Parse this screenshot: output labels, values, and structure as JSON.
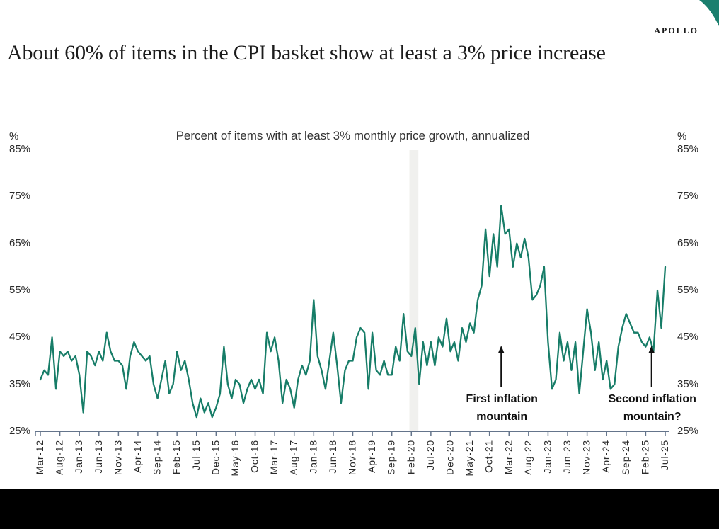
{
  "page": {
    "title": "About 60% of items in the CPI basket show at least a 3% price increase"
  },
  "branding": {
    "logo_text": "APOLLO",
    "accent_color": "#1b7f6e"
  },
  "chart_data": {
    "type": "line",
    "title": "Percent of items with at least 3% monthly price growth, annualized",
    "unit_label": "%",
    "ylim": [
      25,
      85
    ],
    "y_tick_values": [
      85,
      75,
      65,
      55,
      45,
      35,
      25
    ],
    "y_tick_labels": [
      "85%",
      "75%",
      "65%",
      "55%",
      "45%",
      "35%",
      "25%"
    ],
    "grid": "off",
    "x_start_label": "Mar-12",
    "x_end_label": "Jul-25",
    "x_tick_step_months": 5,
    "x_tick_labels": [
      "Mar-12",
      "Aug-12",
      "Jan-13",
      "Jun-13",
      "Nov-13",
      "Apr-14",
      "Sep-14",
      "Feb-15",
      "Jul-15",
      "Dec-15",
      "May-16",
      "Oct-16",
      "Mar-17",
      "Aug-17",
      "Jan-18",
      "Jun-18",
      "Nov-18",
      "Apr-19",
      "Sep-19",
      "Feb-20",
      "Jul-20",
      "Dec-20",
      "May-21",
      "Oct-21",
      "Mar-22",
      "Aug-22",
      "Jan-23",
      "Jun-23",
      "Nov-23",
      "Apr-24",
      "Sep-24",
      "Feb-25",
      "Jul-25"
    ],
    "series": [
      {
        "name": "Percent of items with at least 3% monthly price growth, annualized",
        "color": "#177d68",
        "frequency": "monthly",
        "values": [
          36,
          38,
          37,
          45,
          34,
          42,
          41,
          42,
          40,
          41,
          37,
          29,
          42,
          41,
          39,
          42,
          40,
          46,
          42,
          40,
          40,
          39,
          34,
          41,
          44,
          42,
          41,
          40,
          41,
          35,
          32,
          36,
          40,
          33,
          35,
          42,
          38,
          40,
          36,
          31,
          28,
          32,
          29,
          31,
          28,
          30,
          33,
          43,
          35,
          32,
          36,
          35,
          31,
          34,
          36,
          34,
          36,
          33,
          46,
          42,
          45,
          40,
          31,
          36,
          34,
          30,
          36,
          39,
          37,
          40,
          53,
          41,
          38,
          34,
          40,
          46,
          39,
          31,
          38,
          40,
          40,
          45,
          47,
          46,
          34,
          46,
          38,
          37,
          40,
          37,
          37,
          43,
          40,
          50,
          42,
          41,
          47,
          35,
          44,
          39,
          44,
          39,
          45,
          43,
          49,
          42,
          44,
          40,
          47,
          44,
          48,
          46,
          53,
          56,
          68,
          58,
          67,
          60,
          73,
          67,
          68,
          60,
          65,
          62,
          66,
          62,
          53,
          54,
          56,
          60,
          44,
          34,
          36,
          46,
          40,
          44,
          38,
          44,
          33,
          42,
          51,
          46,
          38,
          44,
          36,
          40,
          34,
          35,
          43,
          47,
          50,
          48,
          46,
          46,
          44,
          43,
          45,
          42,
          55,
          47,
          60
        ]
      }
    ],
    "recession_band": {
      "start_label": "Feb-20",
      "end_label": "Apr-20",
      "start_month_index": 94.5,
      "end_month_index": 96.8,
      "color": "#f0f0ee"
    },
    "annotations": [
      {
        "id": "first-inflation-mountain",
        "lines": [
          "First inflation",
          "mountain"
        ],
        "month_index": 118
      },
      {
        "id": "second-inflation-mountain",
        "lines": [
          "Second inflation",
          "mountain?"
        ],
        "month_index": 156.5
      }
    ],
    "axis_color": "#64748b",
    "peak_value": 73,
    "last_value": 60
  }
}
